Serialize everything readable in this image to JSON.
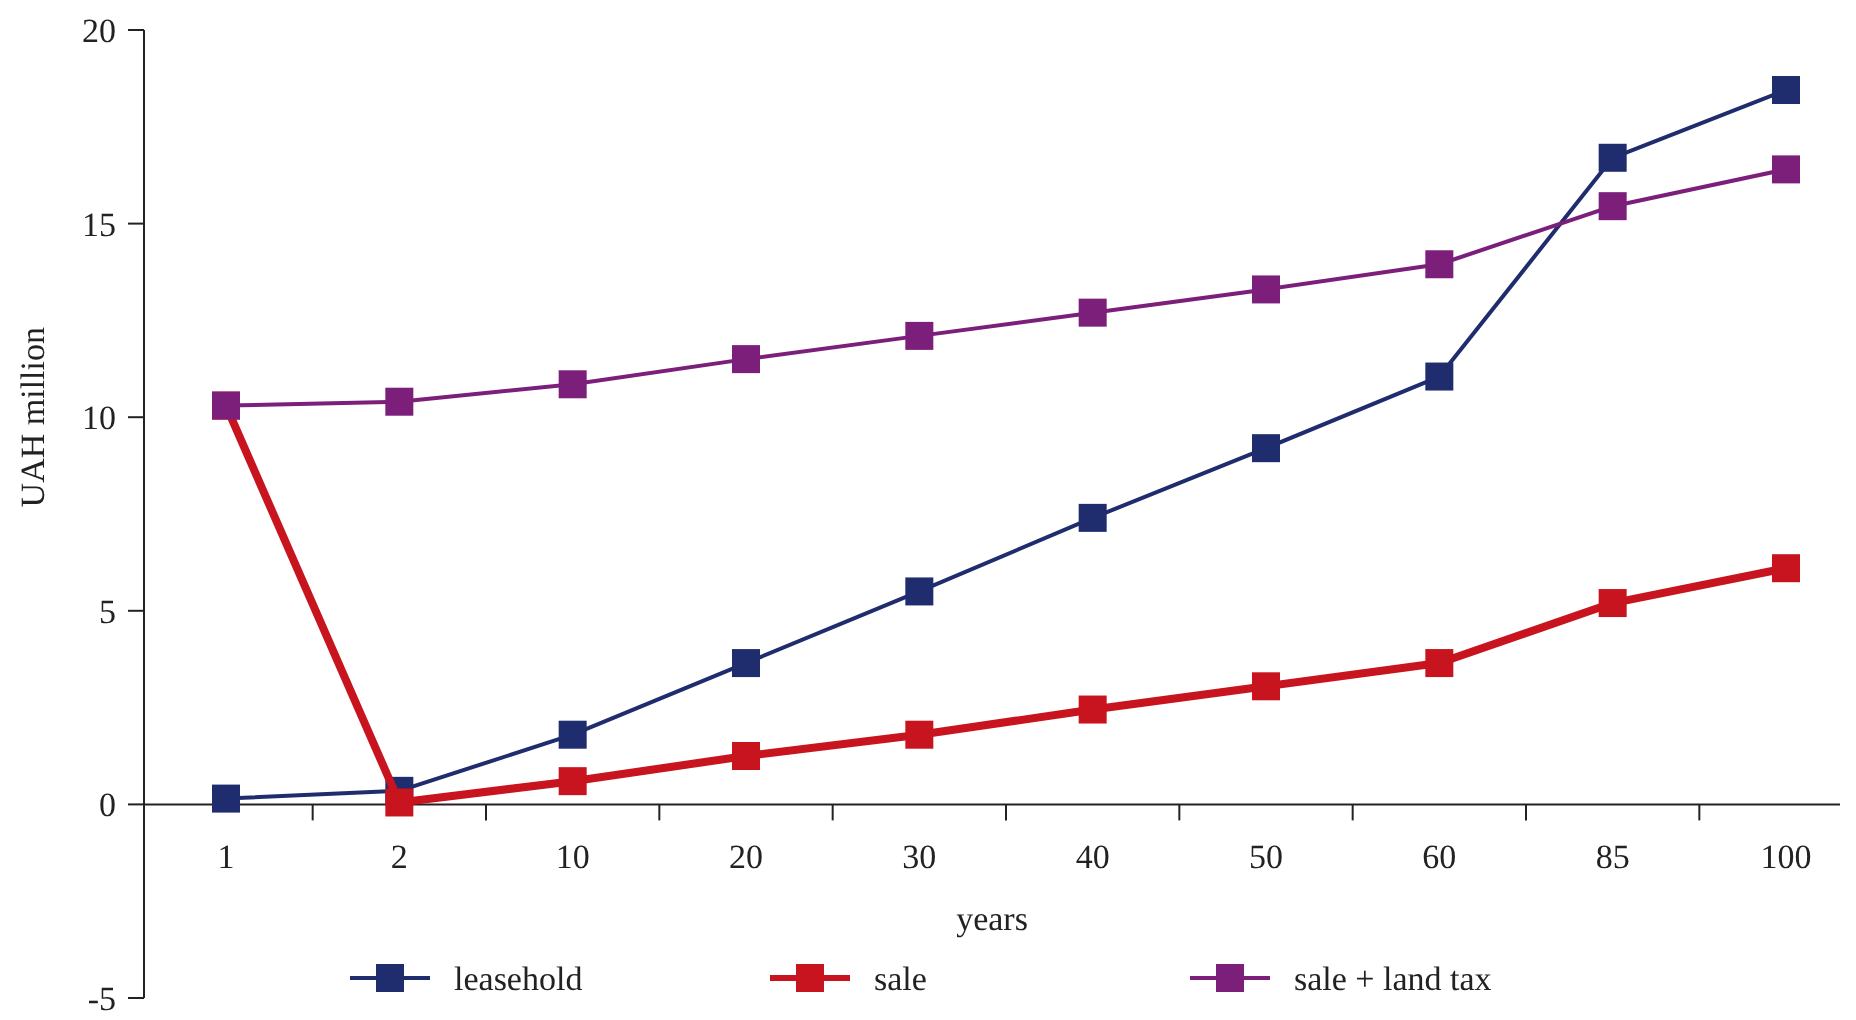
{
  "chart_data": {
    "type": "line",
    "xlabel": "years",
    "ylabel": "UAH million",
    "categories": [
      "1",
      "2",
      "10",
      "20",
      "30",
      "40",
      "50",
      "60",
      "85",
      "100"
    ],
    "series": [
      {
        "name": "leasehold",
        "color": "#1f2d6e",
        "values": [
          0.15,
          0.35,
          1.8,
          3.65,
          5.5,
          7.4,
          9.2,
          11.05,
          16.7,
          18.45
        ]
      },
      {
        "name": "sale",
        "color": "#c8141e",
        "values": [
          10.3,
          0.05,
          0.6,
          1.25,
          1.8,
          2.45,
          3.05,
          3.65,
          5.2,
          6.1
        ]
      },
      {
        "name": "sale + land tax",
        "color": "#7b1f7a",
        "values": [
          10.3,
          10.4,
          10.85,
          11.5,
          12.1,
          12.7,
          13.3,
          13.95,
          15.45,
          16.4
        ]
      }
    ],
    "ylim": [
      -5,
      20
    ],
    "yticks": [
      -5,
      0,
      5,
      10,
      15,
      20
    ],
    "grid": false,
    "legend": "bottom",
    "marker": "square",
    "line_style": "solid"
  }
}
